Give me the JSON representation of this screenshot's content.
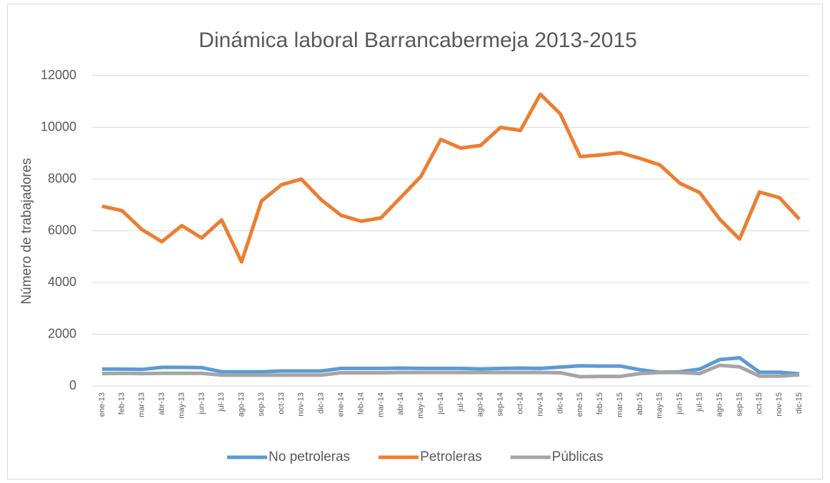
{
  "chart_data": {
    "type": "line",
    "title": "Dinámica laboral Barrancabermeja 2013-2015",
    "y_label": "Número de trabajadores",
    "categories": [
      "ene-13",
      "feb-13",
      "mar-13",
      "abr-13",
      "may-13",
      "jun-13",
      "jul-13",
      "ago-13",
      "sep-13",
      "oct-13",
      "nov-13",
      "dic-13",
      "ene-14",
      "feb-14",
      "mar-14",
      "abr-14",
      "may-14",
      "jun-14",
      "jul-14",
      "ago-14",
      "sep-14",
      "oct-14",
      "nov-14",
      "dic-14",
      "ene-15",
      "feb-15",
      "mar-15",
      "abr-15",
      "may-15",
      "jun-15",
      "jul-15",
      "ago-15",
      "sep-15",
      "oct-15",
      "nov-15",
      "dic-15"
    ],
    "series": [
      {
        "name": "No petroleras",
        "color": "#5b9bd5",
        "values": [
          650,
          650,
          640,
          720,
          720,
          710,
          550,
          550,
          550,
          580,
          580,
          580,
          680,
          680,
          680,
          690,
          680,
          680,
          680,
          660,
          680,
          690,
          680,
          730,
          780,
          770,
          770,
          630,
          530,
          550,
          650,
          1020,
          1090,
          530,
          530,
          470
        ]
      },
      {
        "name": "Petroleras",
        "color": "#ed7d31",
        "values": [
          6950,
          6780,
          6050,
          5580,
          6200,
          5720,
          6420,
          4800,
          7150,
          7780,
          8000,
          7200,
          6600,
          6370,
          6500,
          7300,
          8100,
          9530,
          9200,
          9300,
          10000,
          9880,
          11280,
          10520,
          8870,
          8930,
          9020,
          8800,
          8550,
          7840,
          7480,
          6450,
          5680,
          7500,
          7280,
          6450
        ]
      },
      {
        "name": "Públicas",
        "color": "#a5a5a5",
        "values": [
          480,
          490,
          480,
          490,
          490,
          490,
          420,
          420,
          420,
          420,
          420,
          420,
          510,
          510,
          510,
          520,
          520,
          520,
          520,
          520,
          520,
          520,
          520,
          510,
          360,
          370,
          370,
          480,
          520,
          520,
          480,
          800,
          740,
          380,
          380,
          430
        ]
      }
    ],
    "ylim": [
      0,
      12000
    ],
    "yticks": [
      0,
      2000,
      4000,
      6000,
      8000,
      10000,
      12000
    ],
    "grid": true,
    "legend": "bottom"
  }
}
